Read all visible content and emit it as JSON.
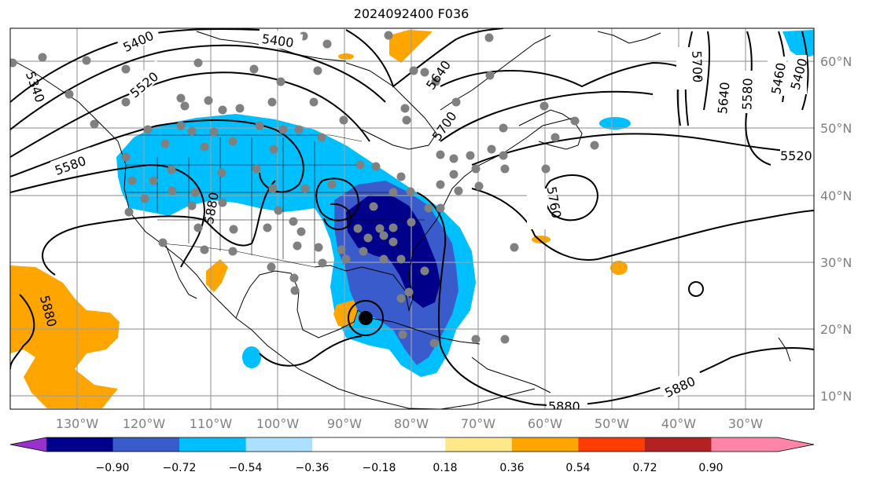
{
  "title": "2024092400 F036",
  "lon_labels": [
    "130°W",
    "120°W",
    "110°W",
    "100°W",
    "90°W",
    "80°W",
    "70°W",
    "60°W",
    "50°W",
    "40°W",
    "30°W"
  ],
  "lat_labels": [
    "60°N",
    "50°N",
    "40°N",
    "30°N",
    "20°N",
    "10°N"
  ],
  "colorbar": {
    "colors": [
      "#9932CC",
      "#00008B",
      "#3A5BCB",
      "#00BFFF",
      "#ADDFFF",
      "#FFFFFF",
      "#FFFFFF",
      "#FFE88A",
      "#FFA500",
      "#FF3C00",
      "#B22222",
      "#FF85A8"
    ],
    "ticks": [
      "−0.90",
      "−0.72",
      "−0.54",
      "−0.36",
      "−0.18",
      "0.18",
      "0.36",
      "0.54",
      "0.72",
      "0.90"
    ]
  },
  "contour_labels": [
    "5400",
    "5400",
    "5340",
    "5520",
    "5580",
    "5640",
    "5700",
    "5880",
    "5760",
    "5700",
    "5640",
    "5580",
    "5460",
    "5400",
    "5520",
    "5880",
    "5880",
    "5880"
  ]
}
